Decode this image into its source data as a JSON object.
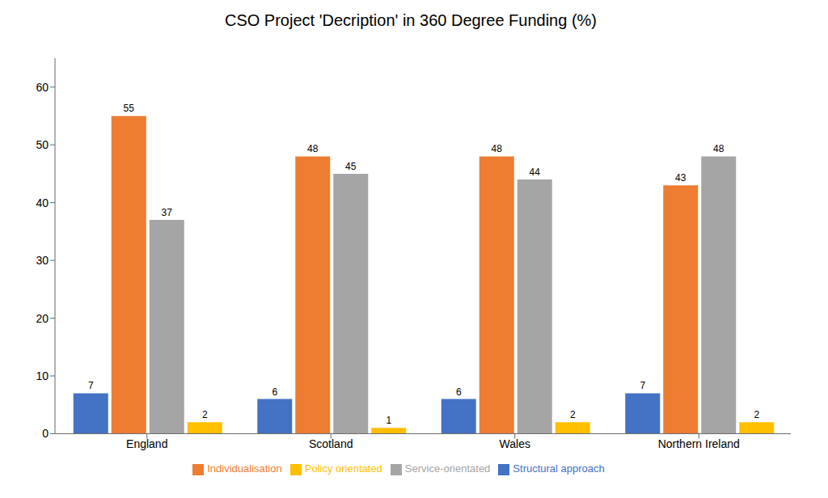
{
  "chart_data": {
    "type": "bar",
    "title": "CSO Project 'Decription' in 360 Degree Funding (%)",
    "categories": [
      "England",
      "Scotland",
      "Wales",
      "Northern Ireland"
    ],
    "series": [
      {
        "name": "Structural approach",
        "color": "#4472C4",
        "values": [
          7,
          6,
          6,
          7
        ]
      },
      {
        "name": "Individualisation",
        "color": "#ED7D31",
        "values": [
          55,
          48,
          48,
          43
        ]
      },
      {
        "name": "Service-orientated",
        "color": "#A5A5A5",
        "values": [
          37,
          45,
          44,
          48
        ]
      },
      {
        "name": "Policy orientated",
        "color": "#FFC000",
        "values": [
          2,
          1,
          2,
          2
        ]
      }
    ],
    "ylim": [
      0,
      65
    ],
    "yticks": [
      0,
      10,
      20,
      30,
      40,
      50,
      60
    ],
    "grid": false,
    "legend": "bottom",
    "data_labels": true
  }
}
